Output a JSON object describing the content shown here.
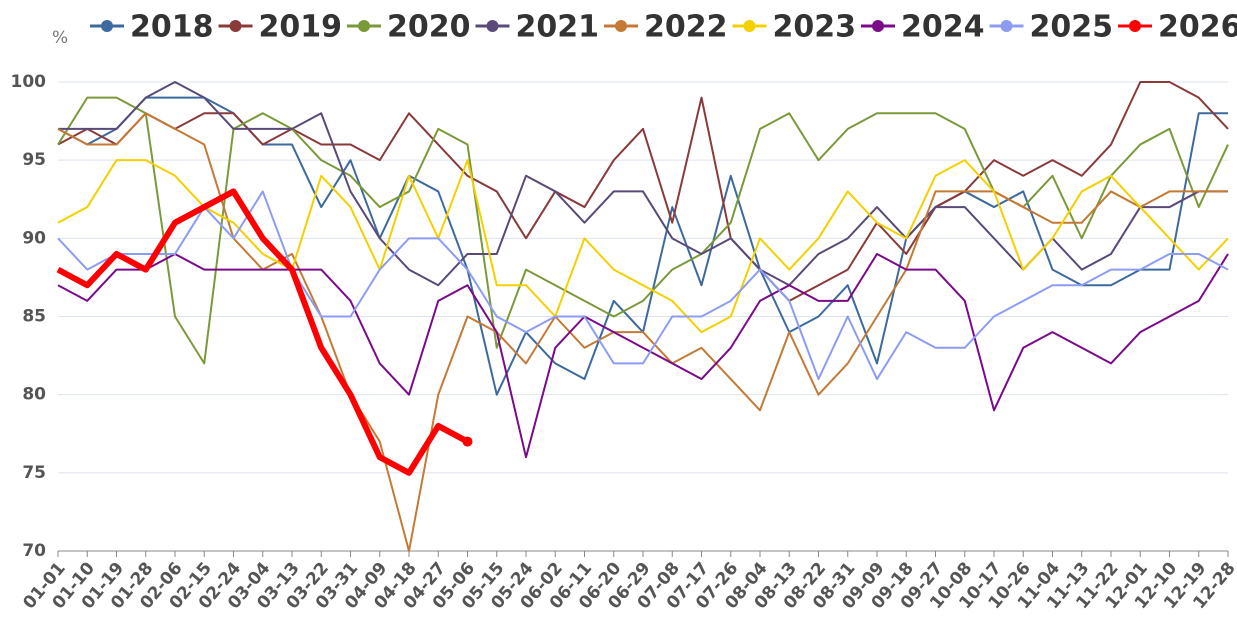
{
  "chart_data": {
    "type": "line",
    "y_unit": "%",
    "categories": [
      "01-01",
      "01-10",
      "01-19",
      "01-28",
      "02-06",
      "02-15",
      "02-24",
      "03-04",
      "03-13",
      "03-22",
      "03-31",
      "04-09",
      "04-18",
      "04-27",
      "05-06",
      "05-15",
      "05-24",
      "06-02",
      "06-11",
      "06-20",
      "06-29",
      "07-08",
      "07-17",
      "07-26",
      "08-04",
      "08-13",
      "08-22",
      "08-31",
      "09-09",
      "09-18",
      "09-27",
      "10-08",
      "10-17",
      "10-26",
      "11-04",
      "11-13",
      "11-22",
      "12-01",
      "12-10",
      "12-19",
      "12-28"
    ],
    "ylim": [
      70,
      100
    ],
    "yticks": [
      70,
      75,
      80,
      85,
      90,
      95,
      100
    ],
    "grid": true,
    "legend": "top",
    "series": [
      {
        "name": "2018",
        "color": "#3d6a9e",
        "values": [
          97,
          96,
          97,
          99,
          99,
          99,
          98,
          96,
          96,
          92,
          95,
          90,
          94,
          93,
          88,
          80,
          84,
          82,
          81,
          86,
          84,
          92,
          87,
          94,
          88,
          84,
          85,
          87,
          82,
          90,
          92,
          93,
          92,
          93,
          88,
          87,
          87,
          88,
          88,
          98,
          98
        ]
      },
      {
        "name": "2019",
        "color": "#8b3a3a",
        "values": [
          96,
          97,
          96,
          98,
          97,
          98,
          98,
          96,
          97,
          96,
          96,
          95,
          98,
          96,
          94,
          93,
          90,
          93,
          92,
          95,
          97,
          91,
          99,
          90,
          88,
          86,
          87,
          88,
          91,
          89,
          92,
          93,
          95,
          94,
          95,
          94,
          96,
          100,
          100,
          99,
          97
        ]
      },
      {
        "name": "2020",
        "color": "#7a9a3a",
        "values": [
          96,
          99,
          99,
          98,
          85,
          82,
          97,
          98,
          97,
          95,
          94,
          92,
          93,
          97,
          96,
          83,
          88,
          87,
          86,
          85,
          86,
          88,
          89,
          91,
          97,
          98,
          95,
          97,
          98,
          98,
          98,
          97,
          93,
          92,
          94,
          90,
          94,
          96,
          97,
          92,
          96
        ]
      },
      {
        "name": "2021",
        "color": "#5a4a7a",
        "values": [
          97,
          97,
          97,
          99,
          100,
          99,
          97,
          97,
          97,
          98,
          93,
          90,
          88,
          87,
          89,
          89,
          94,
          93,
          91,
          93,
          93,
          90,
          89,
          90,
          88,
          87,
          89,
          90,
          92,
          90,
          92,
          92,
          90,
          88,
          90,
          88,
          89,
          92,
          92,
          93,
          93
        ]
      },
      {
        "name": "2022",
        "color": "#c47a34",
        "values": [
          97,
          96,
          96,
          98,
          97,
          96,
          90,
          88,
          89,
          85,
          80,
          77,
          70,
          80,
          85,
          84,
          82,
          85,
          83,
          84,
          84,
          82,
          83,
          81,
          79,
          84,
          80,
          82,
          85,
          88,
          93,
          93,
          93,
          92,
          91,
          91,
          93,
          92,
          93,
          93,
          93
        ]
      },
      {
        "name": "2023",
        "color": "#f5d000",
        "values": [
          91,
          92,
          95,
          95,
          94,
          92,
          91,
          89,
          88,
          94,
          92,
          88,
          94,
          90,
          95,
          87,
          87,
          85,
          90,
          88,
          87,
          86,
          84,
          85,
          90,
          88,
          90,
          93,
          91,
          90,
          94,
          95,
          93,
          88,
          90,
          93,
          94,
          92,
          90,
          88,
          90
        ]
      },
      {
        "name": "2024",
        "color": "#7a0a8a",
        "values": [
          87,
          86,
          88,
          88,
          89,
          88,
          88,
          88,
          88,
          88,
          86,
          82,
          80,
          86,
          87,
          84,
          76,
          83,
          85,
          84,
          83,
          82,
          81,
          83,
          86,
          87,
          86,
          86,
          89,
          88,
          88,
          86,
          79,
          83,
          84,
          83,
          82,
          84,
          85,
          86,
          89
        ]
      },
      {
        "name": "2025",
        "color": "#8c9cf5",
        "values": [
          90,
          88,
          89,
          89,
          89,
          92,
          90,
          93,
          88,
          85,
          85,
          88,
          90,
          90,
          88,
          85,
          84,
          85,
          85,
          82,
          82,
          85,
          85,
          86,
          88,
          86,
          81,
          85,
          81,
          84,
          83,
          83,
          85,
          86,
          87,
          87,
          88,
          88,
          89,
          89,
          88
        ]
      },
      {
        "name": "2026",
        "color": "#ff0000",
        "values": [
          88,
          87,
          89,
          88,
          91,
          92,
          93,
          90,
          88,
          83,
          80,
          76,
          75,
          78,
          77,
          null,
          null,
          null,
          null,
          null,
          null,
          null,
          null,
          null,
          null,
          null,
          null,
          null,
          null,
          null,
          null,
          null,
          null,
          null,
          null,
          null,
          null,
          null,
          null,
          null,
          null
        ]
      }
    ]
  }
}
